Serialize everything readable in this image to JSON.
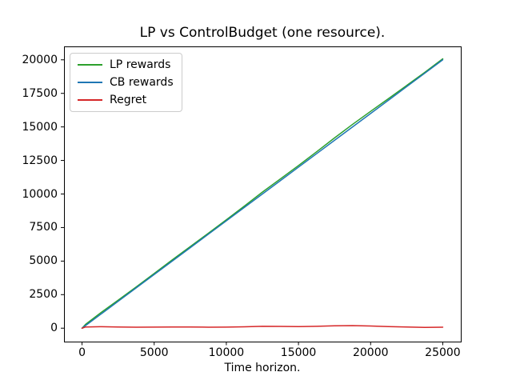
{
  "figure": {
    "background": "#ffffff",
    "axes_color": "#000000"
  },
  "chart_data": {
    "type": "line",
    "title": "LP vs ControlBudget (one resource).",
    "xlabel": "Time horizon.",
    "ylabel": "",
    "grid": false,
    "legend_position": "upper-left",
    "xlim": [
      -1250,
      26250
    ],
    "ylim": [
      -1000,
      21000
    ],
    "xticks": [
      0,
      5000,
      10000,
      15000,
      20000,
      25000
    ],
    "yticks": [
      0,
      2500,
      5000,
      7500,
      10000,
      12500,
      15000,
      17500,
      20000
    ],
    "x": [
      0,
      250,
      1250,
      2500,
      3750,
      5000,
      6250,
      7500,
      8750,
      10000,
      11250,
      12500,
      13750,
      15000,
      16250,
      17500,
      18750,
      20000,
      21250,
      22500,
      23750,
      25000
    ],
    "series": [
      {
        "name": "LP rewards",
        "color": "#2ca02c",
        "values": [
          0,
          290,
          1110,
          2090,
          3070,
          4080,
          5090,
          6085,
          7075,
          8080,
          9100,
          10140,
          11130,
          12120,
          13140,
          14180,
          15190,
          16160,
          17120,
          18090,
          19060,
          20075
        ]
      },
      {
        "name": "CB rewards",
        "color": "#1f77b4",
        "values": [
          0,
          200,
          1000,
          2000,
          3000,
          4000,
          5000,
          6000,
          7000,
          8000,
          9000,
          10000,
          11000,
          12000,
          13000,
          14000,
          15000,
          16000,
          17000,
          18000,
          19000,
          20000
        ]
      },
      {
        "name": "Regret",
        "color": "#d62728",
        "values": [
          0,
          90,
          110,
          90,
          70,
          80,
          90,
          85,
          75,
          80,
          100,
          140,
          130,
          120,
          140,
          180,
          190,
          160,
          120,
          90,
          60,
          75
        ]
      }
    ]
  }
}
